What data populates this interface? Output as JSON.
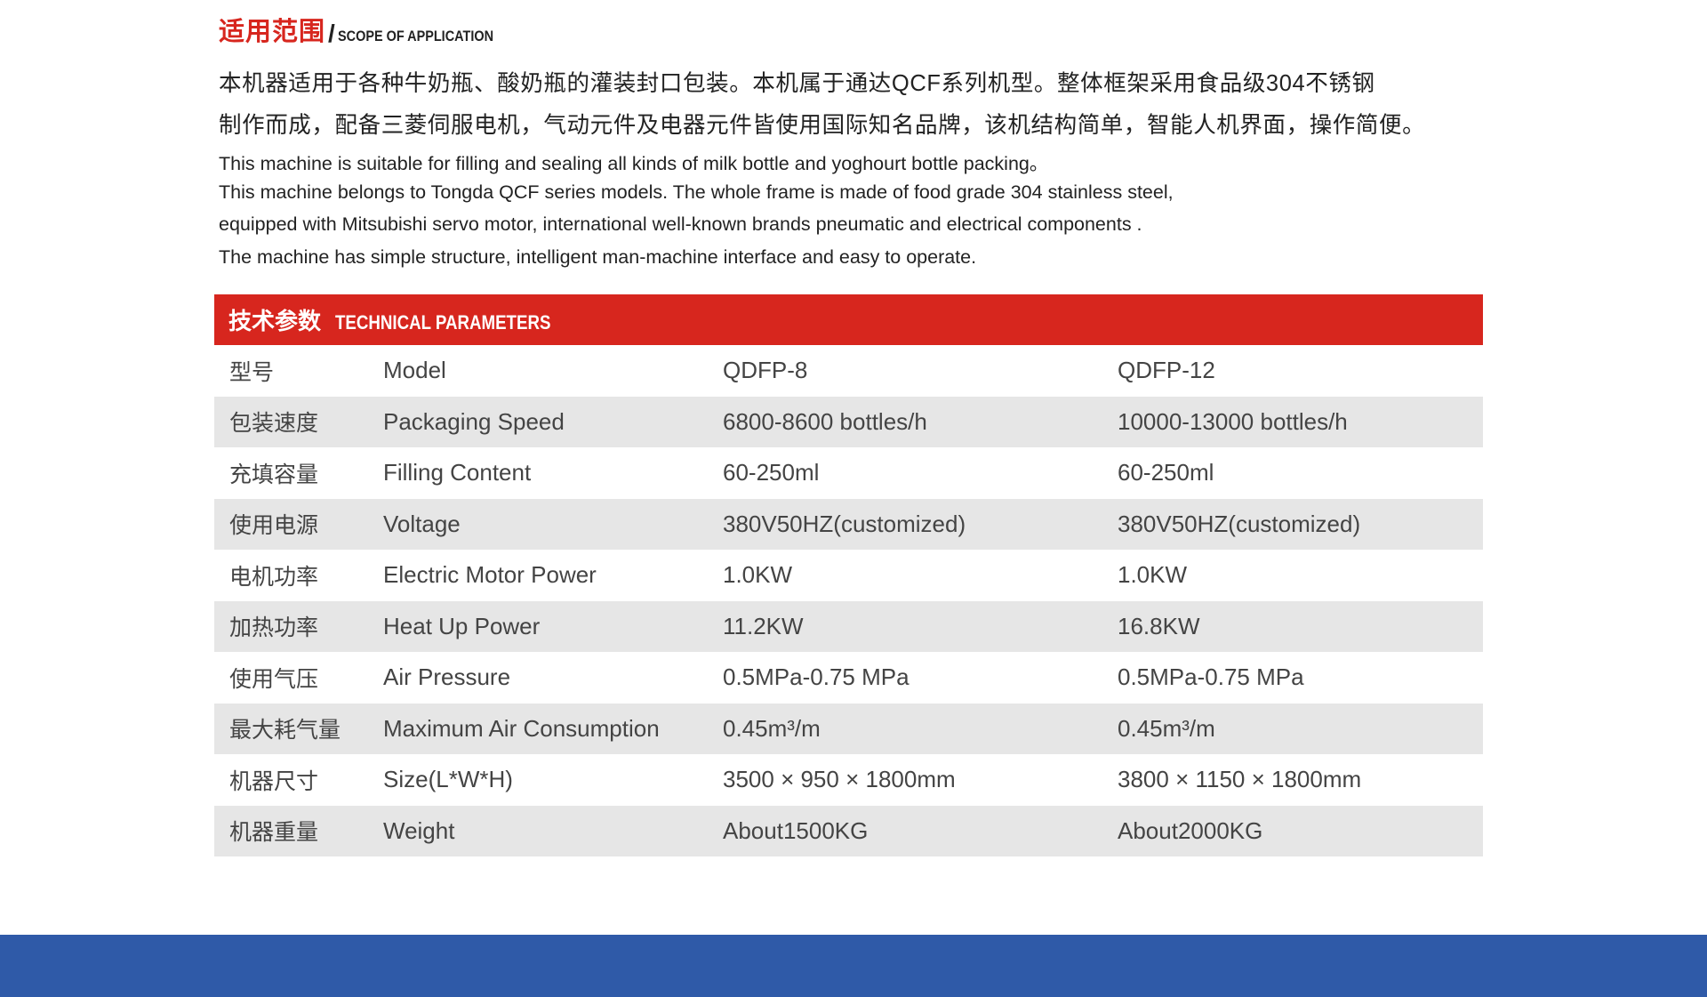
{
  "scope": {
    "title_cn": "适用范围",
    "title_sep": "/",
    "title_en": "SCOPE OF APPLICATION",
    "cn_lines": [
      "本机器适用于各种牛奶瓶、酸奶瓶的灌装封口包装。本机属于通达QCF系列机型。整体框架采用食品级304不锈钢",
      "制作而成，配备三菱伺服电机，气动元件及电器元件皆使用国际知名品牌，该机结构简单，智能人机界面，操作简便。"
    ],
    "en_lines": [
      "This machine is suitable for filling and sealing all kinds of milk bottle and yoghourt bottle packing。",
      "This machine belongs to Tongda QCF series models. The whole frame is made of food grade 304 stainless steel,",
      "equipped with Mitsubishi servo motor, international well-known brands pneumatic and electrical components .",
      "The machine has simple structure, intelligent man-machine interface and easy to operate."
    ]
  },
  "params": {
    "title_cn": "技术参数",
    "title_en": "TECHNICAL PARAMETERS",
    "accent_color": "#d7261e",
    "rows": [
      {
        "cn": "型号",
        "en": "Model",
        "a": "QDFP-8",
        "b": "QDFP-12"
      },
      {
        "cn": "包装速度",
        "en": "Packaging Speed",
        "a": "6800-8600 bottles/h",
        "b": "10000-13000 bottles/h"
      },
      {
        "cn": "充填容量",
        "en": "Filling Content",
        "a": "60-250ml",
        "b": "60-250ml"
      },
      {
        "cn": "使用电源",
        "en": "Voltage",
        "a": "380V50HZ(customized)",
        "b": "380V50HZ(customized)"
      },
      {
        "cn": "电机功率",
        "en": "Electric Motor Power",
        "a": "1.0KW",
        "b": "1.0KW"
      },
      {
        "cn": "加热功率",
        "en": "Heat Up Power",
        "a": "11.2KW",
        "b": "16.8KW"
      },
      {
        "cn": "使用气压",
        "en": "Air Pressure",
        "a": "0.5MPa-0.75 MPa",
        "b": "0.5MPa-0.75 MPa"
      },
      {
        "cn": "最大耗气量",
        "en": "Maximum Air Consumption",
        "a": "0.45m³/m",
        "b": "0.45m³/m"
      },
      {
        "cn": "机器尺寸",
        "en": "Size(L*W*H)",
        "a": "3500 × 950 × 1800mm",
        "b": "3800 × 1150 × 1800mm"
      },
      {
        "cn": "机器重量",
        "en": "Weight",
        "a": "About1500KG",
        "b": "About2000KG"
      }
    ]
  },
  "footer_color": "#2f5aa8"
}
